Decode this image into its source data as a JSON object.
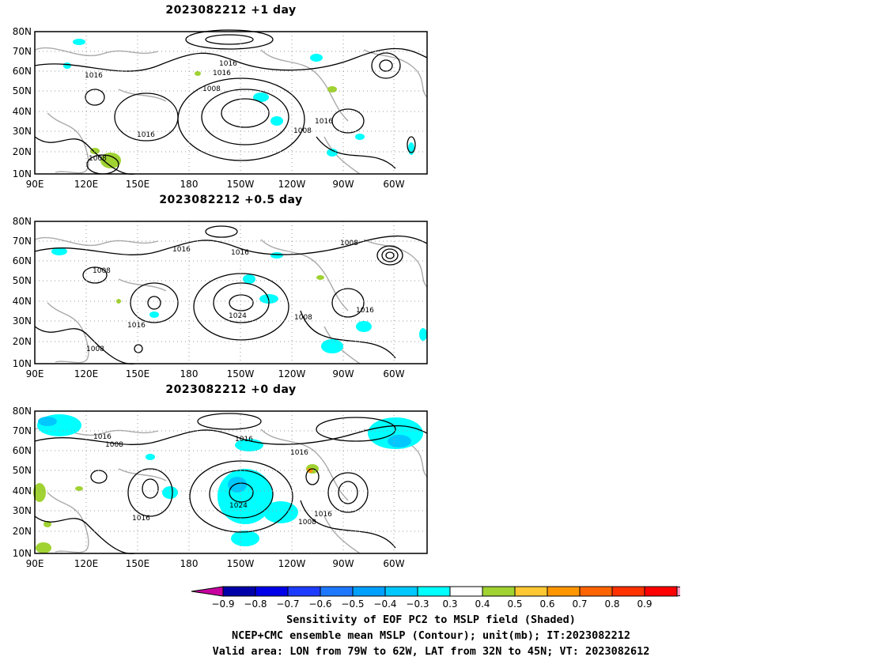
{
  "panels": [
    {
      "title": "2023082212  +1 day",
      "contour_labels": [
        "1016",
        "1016",
        "1008",
        "1016",
        "1016",
        "1008",
        "1016",
        "1008"
      ]
    },
    {
      "title": "2023082212  +0.5 day",
      "contour_labels": [
        "1016",
        "1016",
        "1008",
        "1008",
        "1016",
        "1024",
        "1008",
        "1016",
        "1008"
      ]
    },
    {
      "title": "2023082212  +0 day",
      "contour_labels": [
        "1016",
        "1008",
        "1016",
        "1016",
        "1024",
        "1008",
        "1016",
        "1016"
      ]
    }
  ],
  "lat_ticks": [
    "80N",
    "70N",
    "60N",
    "50N",
    "40N",
    "30N",
    "20N",
    "10N"
  ],
  "lon_ticks": [
    "90E",
    "120E",
    "150E",
    "180",
    "150W",
    "120W",
    "90W",
    "60W"
  ],
  "colorbar": {
    "labels": [
      "−0.9",
      "−0.8",
      "−0.7",
      "−0.6",
      "−0.5",
      "−0.4",
      "−0.3",
      "0.3",
      "0.4",
      "0.5",
      "0.6",
      "0.7",
      "0.8",
      "0.9"
    ],
    "colors": [
      "#0000a8",
      "#0000e8",
      "#1e3cff",
      "#1e78ff",
      "#00a0ff",
      "#00c8ff",
      "#00ffff",
      "#ffffff",
      "#a0d232",
      "#ffc832",
      "#ff9600",
      "#ff6400",
      "#ff3200",
      "#ff0000"
    ],
    "low_end_color": "#c800a0",
    "high_end_color": "#ffa0c8"
  },
  "captions": {
    "line1": "Sensitivity of EOF PC2 to MSLP field (Shaded)",
    "line2": "NCEP+CMC ensemble mean MSLP (Contour); unit(mb); IT:2023082212",
    "line3": "Valid area: LON from 79W to 62W, LAT from 32N to 45N; VT: 2023082612"
  }
}
